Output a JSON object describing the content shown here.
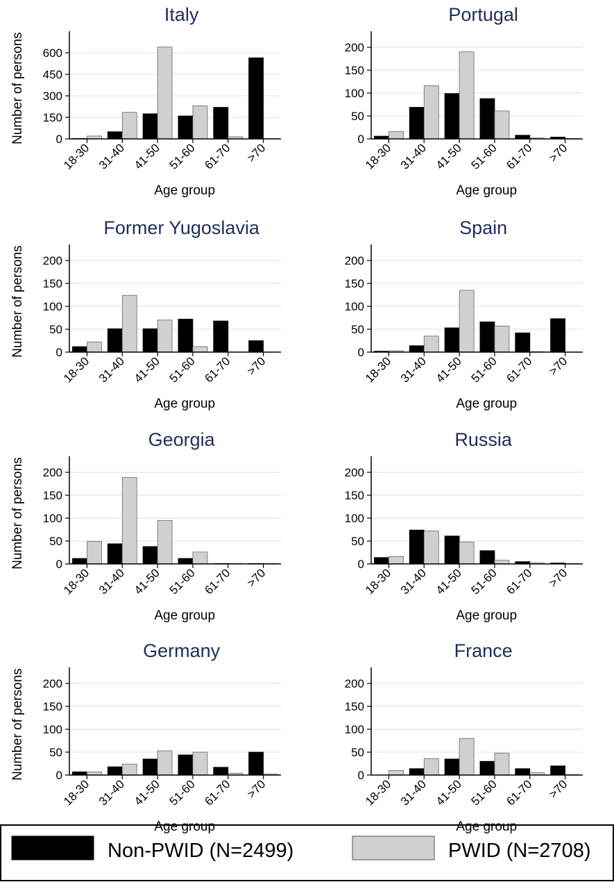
{
  "legend": {
    "items": [
      {
        "label": "Non-PWID (N=2499)",
        "color": "#000000"
      },
      {
        "label": "PWID (N=2708)",
        "color": "#d0d0d0"
      }
    ]
  },
  "colors": {
    "non_pwid": "#000000",
    "pwid": "#d0d0d0",
    "title": "#1f2d5a",
    "grid": "#d9ece9"
  },
  "chart_data": [
    {
      "type": "bar",
      "title": "Italy",
      "xlabel": "Age group",
      "ylabel": "Number of persons",
      "categories": [
        "18-30",
        "31-40",
        "41-50",
        "51-60",
        "61-70",
        ">70"
      ],
      "ylim": [
        0,
        750
      ],
      "yticks": [
        0,
        150,
        300,
        450,
        600
      ],
      "series": [
        {
          "name": "Non-PWID (N=2499)",
          "values": [
            3,
            50,
            175,
            160,
            220,
            565
          ]
        },
        {
          "name": "PWID (N=2708)",
          "values": [
            20,
            185,
            640,
            230,
            15,
            2
          ]
        }
      ]
    },
    {
      "type": "bar",
      "title": "Portugal",
      "xlabel": "Age group",
      "ylabel": "",
      "categories": [
        "18-30",
        "31-40",
        "41-50",
        "51-60",
        "61-70",
        ">70"
      ],
      "ylim": [
        0,
        235
      ],
      "yticks": [
        0,
        50,
        100,
        150,
        200
      ],
      "series": [
        {
          "name": "Non-PWID (N=2499)",
          "values": [
            6,
            69,
            99,
            88,
            8,
            4
          ]
        },
        {
          "name": "PWID (N=2708)",
          "values": [
            16,
            116,
            190,
            61,
            2,
            1
          ]
        }
      ]
    },
    {
      "type": "bar",
      "title": "Former Yugoslavia",
      "xlabel": "Age group",
      "ylabel": "Number of persons",
      "categories": [
        "18-30",
        "31-40",
        "41-50",
        "51-60",
        "61-70",
        ">70"
      ],
      "ylim": [
        0,
        235
      ],
      "yticks": [
        0,
        50,
        100,
        150,
        200
      ],
      "series": [
        {
          "name": "Non-PWID (N=2499)",
          "values": [
            12,
            51,
            51,
            72,
            68,
            25
          ]
        },
        {
          "name": "PWID (N=2708)",
          "values": [
            22,
            124,
            70,
            12,
            0,
            0
          ]
        }
      ]
    },
    {
      "type": "bar",
      "title": "Spain",
      "xlabel": "Age group",
      "ylabel": "",
      "categories": [
        "18-30",
        "31-40",
        "41-50",
        "51-60",
        "61-70",
        ">70"
      ],
      "ylim": [
        0,
        235
      ],
      "yticks": [
        0,
        50,
        100,
        150,
        200
      ],
      "series": [
        {
          "name": "Non-PWID (N=2499)",
          "values": [
            2,
            14,
            53,
            66,
            42,
            73
          ]
        },
        {
          "name": "PWID (N=2708)",
          "values": [
            3,
            35,
            135,
            57,
            1,
            0
          ]
        }
      ]
    },
    {
      "type": "bar",
      "title": "Georgia",
      "xlabel": "Age group",
      "ylabel": "Number of persons",
      "categories": [
        "18-30",
        "31-40",
        "41-50",
        "51-60",
        "61-70",
        ">70"
      ],
      "ylim": [
        0,
        235
      ],
      "yticks": [
        0,
        50,
        100,
        150,
        200
      ],
      "series": [
        {
          "name": "Non-PWID (N=2499)",
          "values": [
            12,
            44,
            38,
            12,
            1,
            1
          ]
        },
        {
          "name": "PWID (N=2708)",
          "values": [
            49,
            189,
            95,
            26,
            1,
            1
          ]
        }
      ]
    },
    {
      "type": "bar",
      "title": "Russia",
      "xlabel": "Age group",
      "ylabel": "",
      "categories": [
        "18-30",
        "31-40",
        "41-50",
        "51-60",
        "61-70",
        ">70"
      ],
      "ylim": [
        0,
        235
      ],
      "yticks": [
        0,
        50,
        100,
        150,
        200
      ],
      "series": [
        {
          "name": "Non-PWID (N=2499)",
          "values": [
            14,
            74,
            61,
            29,
            5,
            2
          ]
        },
        {
          "name": "PWID (N=2708)",
          "values": [
            16,
            72,
            48,
            8,
            2,
            1
          ]
        }
      ]
    },
    {
      "type": "bar",
      "title": "Germany",
      "xlabel": "Age group",
      "ylabel": "Number of persons",
      "categories": [
        "18-30",
        "31-40",
        "41-50",
        "51-60",
        "61-70",
        ">70"
      ],
      "ylim": [
        0,
        235
      ],
      "yticks": [
        0,
        50,
        100,
        150,
        200
      ],
      "series": [
        {
          "name": "Non-PWID (N=2499)",
          "values": [
            7,
            18,
            35,
            44,
            17,
            50
          ]
        },
        {
          "name": "PWID (N=2708)",
          "values": [
            7,
            24,
            53,
            50,
            4,
            2
          ]
        }
      ]
    },
    {
      "type": "bar",
      "title": "France",
      "xlabel": "Age group",
      "ylabel": "",
      "categories": [
        "18-30",
        "31-40",
        "41-50",
        "51-60",
        "61-70",
        ">70"
      ],
      "ylim": [
        0,
        235
      ],
      "yticks": [
        0,
        50,
        100,
        150,
        200
      ],
      "series": [
        {
          "name": "Non-PWID (N=2499)",
          "values": [
            0,
            14,
            35,
            30,
            14,
            20
          ]
        },
        {
          "name": "PWID (N=2708)",
          "values": [
            10,
            36,
            80,
            48,
            5,
            1
          ]
        }
      ]
    }
  ]
}
